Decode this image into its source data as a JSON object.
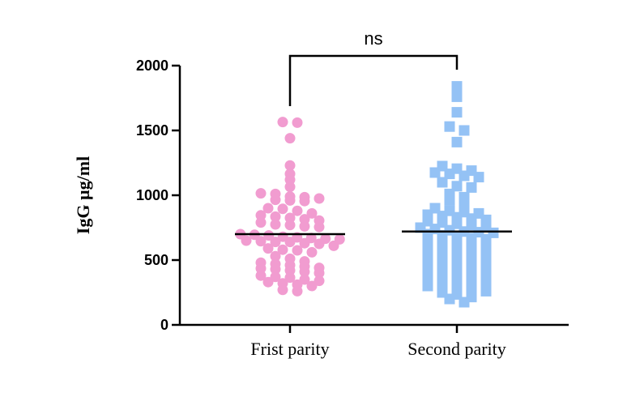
{
  "chart_data": {
    "type": "scatter",
    "subtype": "dot-plot-with-mean",
    "ylabel": "IgG µg/ml",
    "ylim": [
      0,
      2000
    ],
    "yticks": [
      0,
      500,
      1000,
      1500,
      2000
    ],
    "categories": [
      "Frist parity",
      "Second parity"
    ],
    "significance": {
      "label": "ns",
      "between": [
        "Frist parity",
        "Second parity"
      ]
    },
    "colors": {
      "Frist parity": "#f19cd0",
      "Second parity": "#94c2f5",
      "axis": "#000000"
    },
    "markers": {
      "Frist parity": "circle",
      "Second parity": "square"
    },
    "series": [
      {
        "category": "Frist parity",
        "mean": 700,
        "values": [
          1565,
          1560,
          1440,
          1230,
          1165,
          1120,
          1065,
          1015,
          1010,
          990,
          985,
          975,
          965,
          960,
          955,
          900,
          895,
          880,
          860,
          845,
          835,
          825,
          815,
          805,
          790,
          775,
          770,
          760,
          755,
          700,
          695,
          690,
          680,
          675,
          670,
          665,
          660,
          650,
          645,
          640,
          640,
          630,
          625,
          610,
          590,
          580,
          575,
          560,
          530,
          510,
          490,
          480,
          470,
          460,
          450,
          440,
          435,
          430,
          420,
          410,
          400,
          380,
          370,
          365,
          350,
          340,
          330,
          320,
          310,
          300,
          270,
          260
        ]
      },
      {
        "category": "Second parity",
        "mean": 720,
        "values": [
          1840,
          1760,
          1640,
          1530,
          1500,
          1410,
          1225,
          1205,
          1190,
          1175,
          1165,
          1150,
          1140,
          1100,
          1070,
          1060,
          1010,
          985,
          960,
          940,
          900,
          880,
          870,
          860,
          850,
          840,
          830,
          820,
          810,
          800,
          790,
          780,
          770,
          760,
          750,
          740,
          730,
          720,
          715,
          710,
          700,
          690,
          680,
          670,
          660,
          650,
          640,
          630,
          620,
          610,
          600,
          590,
          580,
          570,
          560,
          550,
          540,
          530,
          520,
          510,
          500,
          490,
          480,
          470,
          460,
          450,
          440,
          430,
          420,
          410,
          400,
          390,
          380,
          370,
          360,
          350,
          340,
          330,
          320,
          310,
          300,
          290,
          280,
          270,
          260,
          250,
          235,
          215,
          200,
          175
        ]
      }
    ]
  }
}
